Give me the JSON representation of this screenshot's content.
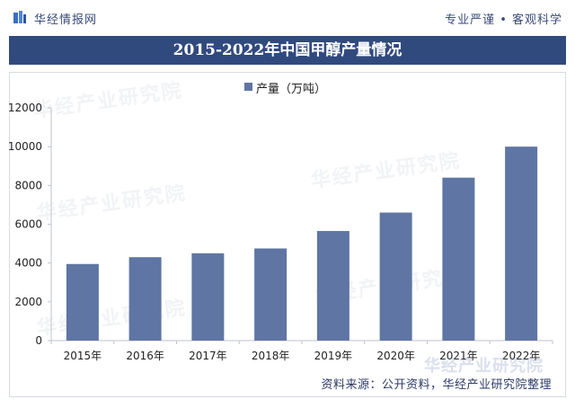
{
  "header": {
    "brand": "华经情报网",
    "tagline": "专业严谨 • 客观科学"
  },
  "title": "2015-2022年中国甲醇产量情况",
  "watermark": "华经产业研究院",
  "source": "资料来源：公开资料，华经产业研究院整理",
  "colors": {
    "title_bar": "#314a7e",
    "bar": "#5f75a3"
  },
  "chart_data": {
    "type": "bar",
    "categories": [
      "2015年",
      "2016年",
      "2017年",
      "2018年",
      "2019年",
      "2020年",
      "2021年",
      "2022年"
    ],
    "series": [
      {
        "name": "产量（万吨）",
        "values": [
          3950,
          4300,
          4500,
          4750,
          5650,
          6600,
          8400,
          10000
        ]
      }
    ],
    "yticks": [
      "0",
      "2000",
      "4000",
      "6000",
      "8000",
      "10000",
      "12000"
    ],
    "ylim": [
      0,
      12000
    ],
    "legend_position": "top-center",
    "grid": false
  }
}
